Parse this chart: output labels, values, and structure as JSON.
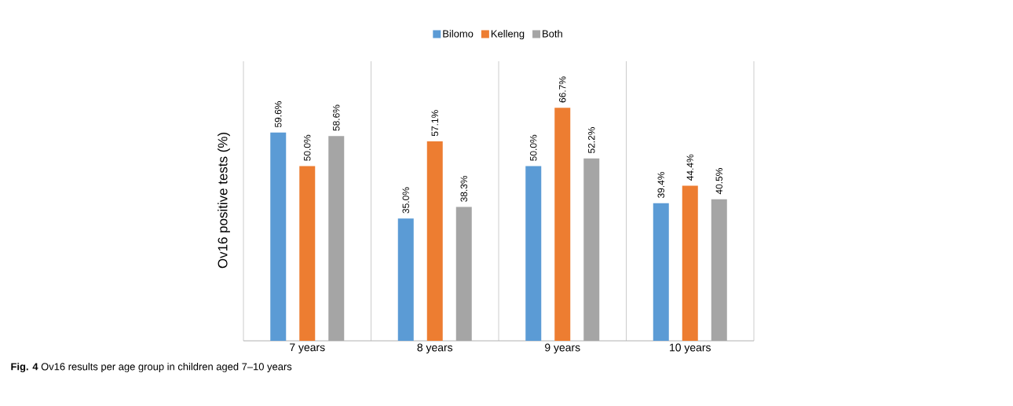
{
  "chart_data": {
    "type": "bar",
    "ylabel": "Ov16 positive tests (%)",
    "categories": [
      "7  years",
      "8  years",
      "9  years",
      "10  years"
    ],
    "series": [
      {
        "name": "Bilomo",
        "color": "#5b9bd5",
        "values": [
          59.6,
          35.0,
          50.0,
          39.4
        ],
        "value_labels": [
          "59.6%",
          "35.0%",
          "50.0%",
          "39.4%"
        ]
      },
      {
        "name": "Kelleng",
        "color": "#ed7d31",
        "values": [
          50.0,
          57.1,
          66.7,
          44.4
        ],
        "value_labels": [
          "50.0%",
          "57.1%",
          "66.7%",
          "44.4%"
        ]
      },
      {
        "name": "Both",
        "color": "#a5a5a5",
        "values": [
          58.6,
          38.3,
          52.2,
          40.5
        ],
        "value_labels": [
          "58.6%",
          "38.3%",
          "52.2%",
          "40.5%"
        ]
      }
    ],
    "ylim": [
      0,
      80
    ],
    "grid": "x",
    "legend": "top",
    "annotations": [
      "**Fig. 4** Ov16 results per age group in children aged 7–10 years"
    ]
  }
}
